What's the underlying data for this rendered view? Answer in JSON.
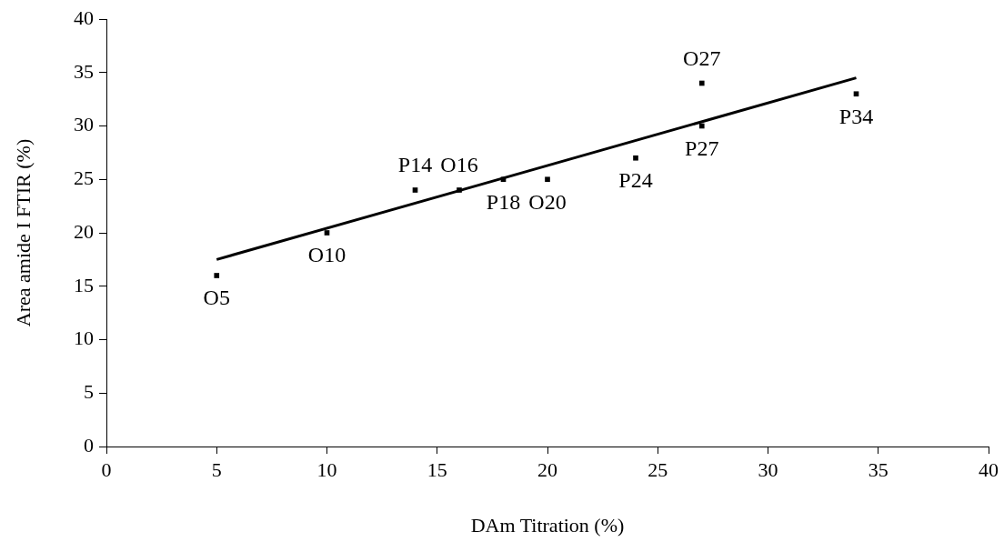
{
  "chart_data": {
    "type": "scatter",
    "xlabel": "DAm Titration (%)",
    "ylabel": "Area amide I FTIR (%)",
    "xlim": [
      0,
      40
    ],
    "xticks": [
      0,
      5,
      10,
      15,
      20,
      25,
      30,
      35,
      40
    ],
    "ylim": [
      0,
      40
    ],
    "yticks": [
      0,
      5,
      10,
      15,
      20,
      25,
      30,
      35,
      40
    ],
    "grid": false,
    "legend": false,
    "marker": "square",
    "series": [
      {
        "type": "scatter",
        "color": "#000000",
        "x": [
          5,
          10,
          14,
          16,
          18,
          20,
          24,
          27,
          27,
          34
        ],
        "values": [
          16,
          20,
          24,
          24,
          25,
          25,
          27,
          34,
          30,
          33
        ]
      },
      {
        "type": "line",
        "color": "#000000",
        "line_style": "solid",
        "marker": "none",
        "x": [
          5,
          34
        ],
        "values": [
          17.5,
          34.5
        ]
      }
    ],
    "annotations": [
      {
        "text": "O5",
        "x": 5,
        "y": 16
      },
      {
        "text": "O10",
        "x": 10,
        "y": 20
      },
      {
        "text": "P14",
        "x": 14,
        "y": 24
      },
      {
        "text": "O16",
        "x": 16,
        "y": 24
      },
      {
        "text": "P18",
        "x": 18,
        "y": 25
      },
      {
        "text": "O20",
        "x": 20,
        "y": 25
      },
      {
        "text": "P24",
        "x": 24,
        "y": 27
      },
      {
        "text": "O27",
        "x": 27,
        "y": 34
      },
      {
        "text": "P27",
        "x": 27,
        "y": 30
      },
      {
        "text": "P34",
        "x": 34,
        "y": 33
      }
    ]
  }
}
